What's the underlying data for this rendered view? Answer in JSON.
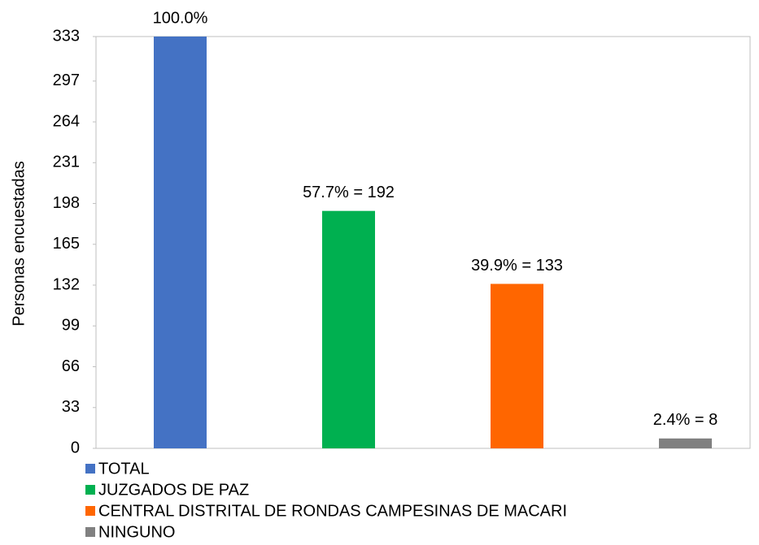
{
  "chart_data": {
    "type": "bar",
    "y_label": "Personas encuestadas",
    "categories": [
      "TOTAL",
      "JUZGADOS DE PAZ",
      "CENTRAL DISTRITAL DE RONDAS CAMPESINAS DE MACARI",
      "NINGUNO"
    ],
    "values": [
      333,
      192,
      133,
      8
    ],
    "value_labels": [
      "100.0%",
      "57.7% = 192",
      "39.9% = 133",
      "2.4% = 8"
    ],
    "colors": [
      "#4472c4",
      "#00b050",
      "#ff6600",
      "#808080"
    ],
    "ylim": [
      0,
      333
    ],
    "yticks": [
      0,
      33,
      66,
      99,
      132,
      165,
      198,
      231,
      264,
      297,
      333
    ],
    "grid": false,
    "legend": "bottom-left"
  }
}
